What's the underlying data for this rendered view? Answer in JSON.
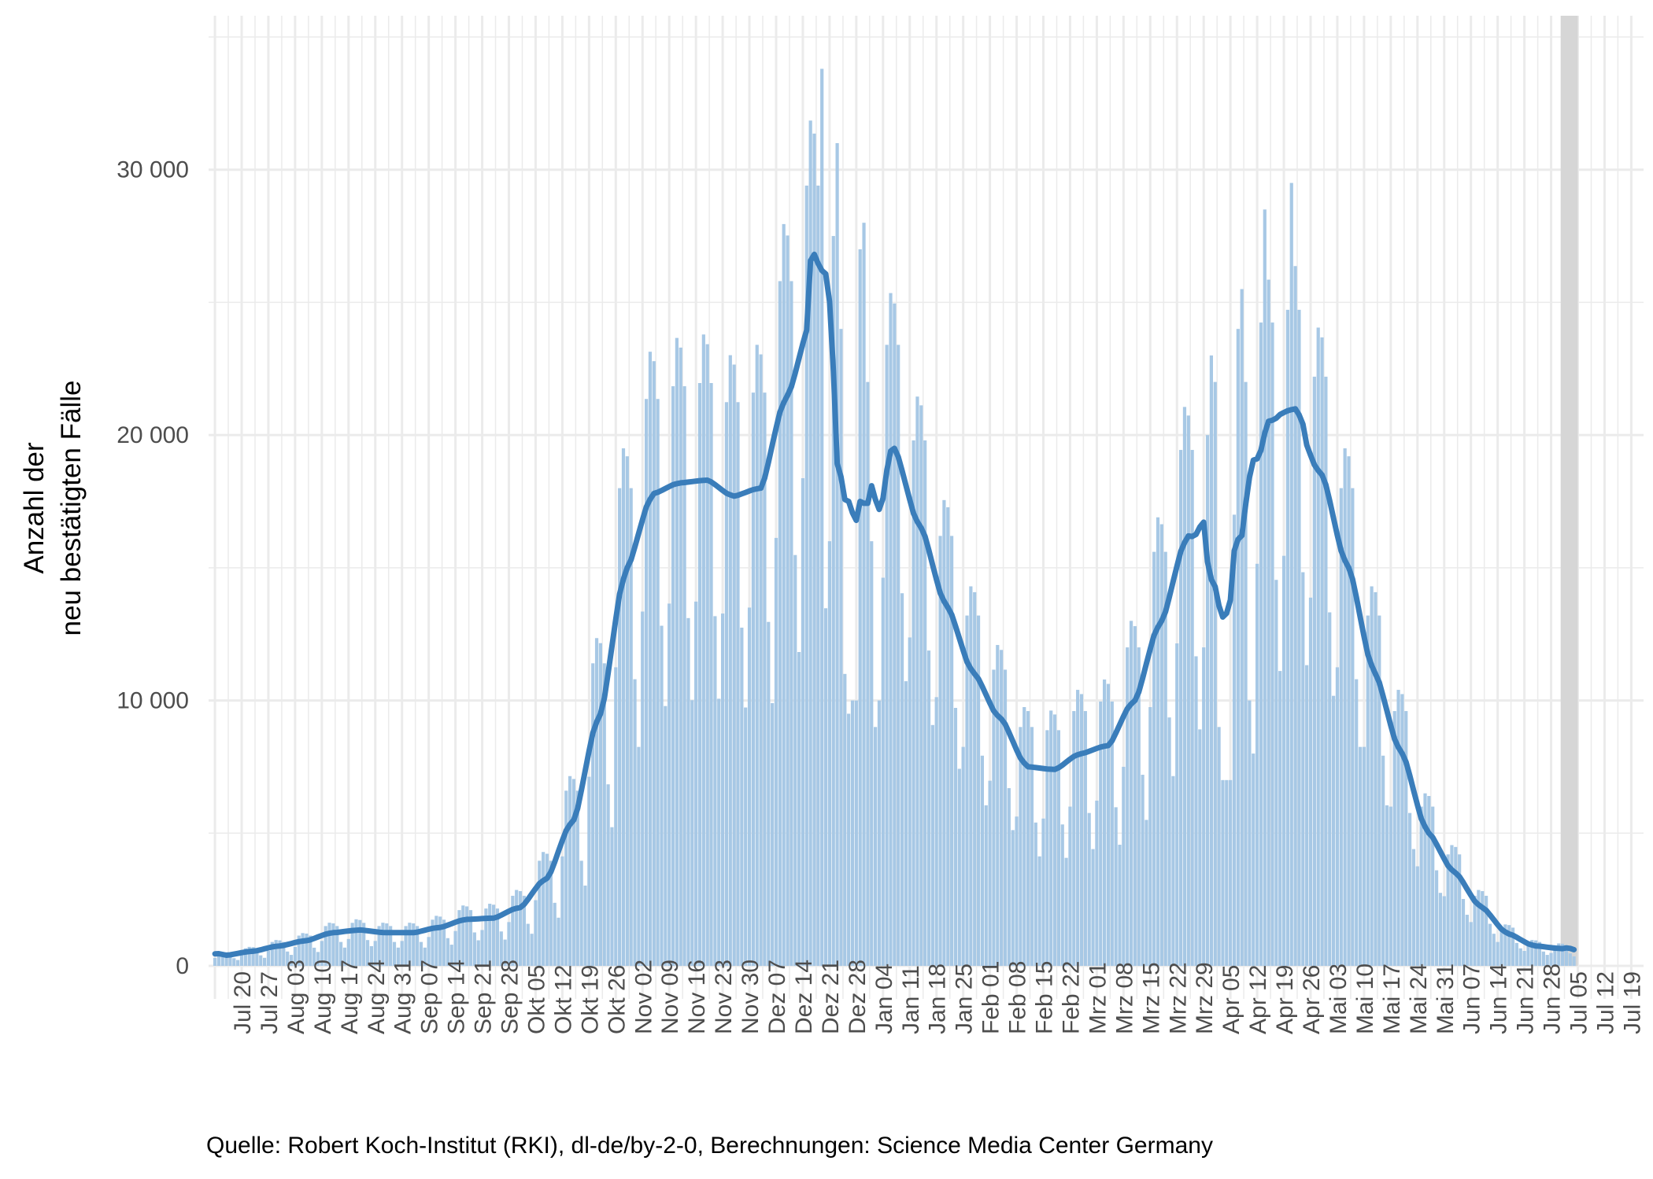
{
  "chart_data": {
    "type": "bar",
    "title": "",
    "xlabel": "",
    "ylabel_lines": [
      "Anzahl der",
      "neu bestätigten Fälle"
    ],
    "caption": "Quelle: Robert Koch-Institut (RKI), dl-de/by-2-0, Berechnungen: Science Media Center Germany",
    "x_start": "2020-07-13",
    "xlim": [
      "2020-07-12",
      "2021-07-22"
    ],
    "ylim": [
      0,
      35000
    ],
    "grid": true,
    "incomplete_range": [
      "2021-07-01",
      "2021-07-04"
    ],
    "colors": {
      "bars": "#a7c8e5",
      "line": "#3a7dba",
      "incomplete": "#d6d6d6",
      "grid": "#ebebeb"
    },
    "y_ticks": [
      {
        "value": 0,
        "label": "0"
      },
      {
        "value": 10000,
        "label": "10 000"
      },
      {
        "value": 20000,
        "label": "20 000"
      },
      {
        "value": 30000,
        "label": "30 000"
      }
    ],
    "x_ticks": [
      {
        "date": "2020-07-20",
        "label": "Jul 20"
      },
      {
        "date": "2020-07-27",
        "label": "Jul 27"
      },
      {
        "date": "2020-08-03",
        "label": "Aug 03"
      },
      {
        "date": "2020-08-10",
        "label": "Aug 10"
      },
      {
        "date": "2020-08-17",
        "label": "Aug 17"
      },
      {
        "date": "2020-08-24",
        "label": "Aug 24"
      },
      {
        "date": "2020-08-31",
        "label": "Aug 31"
      },
      {
        "date": "2020-09-07",
        "label": "Sep 07"
      },
      {
        "date": "2020-09-14",
        "label": "Sep 14"
      },
      {
        "date": "2020-09-21",
        "label": "Sep 21"
      },
      {
        "date": "2020-09-28",
        "label": "Sep 28"
      },
      {
        "date": "2020-10-05",
        "label": "Okt 05"
      },
      {
        "date": "2020-10-12",
        "label": "Okt 12"
      },
      {
        "date": "2020-10-19",
        "label": "Okt 19"
      },
      {
        "date": "2020-10-26",
        "label": "Okt 26"
      },
      {
        "date": "2020-11-02",
        "label": "Nov 02"
      },
      {
        "date": "2020-11-09",
        "label": "Nov 09"
      },
      {
        "date": "2020-11-16",
        "label": "Nov 16"
      },
      {
        "date": "2020-11-23",
        "label": "Nov 23"
      },
      {
        "date": "2020-11-30",
        "label": "Nov 30"
      },
      {
        "date": "2020-12-07",
        "label": "Dez 07"
      },
      {
        "date": "2020-12-14",
        "label": "Dez 14"
      },
      {
        "date": "2020-12-21",
        "label": "Dez 21"
      },
      {
        "date": "2020-12-28",
        "label": "Dez 28"
      },
      {
        "date": "2021-01-04",
        "label": "Jan 04"
      },
      {
        "date": "2021-01-11",
        "label": "Jan 11"
      },
      {
        "date": "2021-01-18",
        "label": "Jan 18"
      },
      {
        "date": "2021-01-25",
        "label": "Jan 25"
      },
      {
        "date": "2021-02-01",
        "label": "Feb 01"
      },
      {
        "date": "2021-02-08",
        "label": "Feb 08"
      },
      {
        "date": "2021-02-15",
        "label": "Feb 15"
      },
      {
        "date": "2021-02-22",
        "label": "Feb 22"
      },
      {
        "date": "2021-03-01",
        "label": "Mrz 01"
      },
      {
        "date": "2021-03-08",
        "label": "Mrz 08"
      },
      {
        "date": "2021-03-15",
        "label": "Mrz 15"
      },
      {
        "date": "2021-03-22",
        "label": "Mrz 22"
      },
      {
        "date": "2021-03-29",
        "label": "Mrz 29"
      },
      {
        "date": "2021-04-05",
        "label": "Apr 05"
      },
      {
        "date": "2021-04-12",
        "label": "Apr 12"
      },
      {
        "date": "2021-04-19",
        "label": "Apr 19"
      },
      {
        "date": "2021-04-26",
        "label": "Apr 26"
      },
      {
        "date": "2021-05-03",
        "label": "Mai 03"
      },
      {
        "date": "2021-05-10",
        "label": "Mai 10"
      },
      {
        "date": "2021-05-17",
        "label": "Mai 17"
      },
      {
        "date": "2021-05-24",
        "label": "Mai 24"
      },
      {
        "date": "2021-05-31",
        "label": "Mai 31"
      },
      {
        "date": "2021-06-07",
        "label": "Jun 07"
      },
      {
        "date": "2021-06-14",
        "label": "Jun 14"
      },
      {
        "date": "2021-06-21",
        "label": "Jun 21"
      },
      {
        "date": "2021-06-28",
        "label": "Jun 28"
      },
      {
        "date": "2021-07-05",
        "label": "Jul 05"
      },
      {
        "date": "2021-07-12",
        "label": "Jul 12"
      },
      {
        "date": "2021-07-19",
        "label": "Jul 19"
      }
    ],
    "series": [
      {
        "type": "bar",
        "values": [
          300,
          480,
          520,
          512,
          480,
          288,
          220,
          413,
          660,
          715,
          704,
          660,
          396,
          303,
          563,
          900,
          975,
          960,
          900,
          540,
          413,
          713,
          1140,
          1235,
          1216,
          1140,
          684,
          523,
          938,
          1500,
          1625,
          1600,
          1500,
          900,
          688,
          1013,
          1620,
          1755,
          1728,
          1620,
          972,
          743,
          938,
          1500,
          1625,
          1600,
          1500,
          900,
          688,
          938,
          1500,
          1625,
          1600,
          1500,
          900,
          688,
          1088,
          1740,
          1885,
          1856,
          1740,
          1044,
          798,
          1313,
          2100,
          2275,
          2240,
          2100,
          1260,
          963,
          1350,
          2160,
          2340,
          2304,
          2160,
          1296,
          990,
          1650,
          2640,
          2860,
          2816,
          2640,
          1584,
          1210,
          2475,
          3960,
          4290,
          4224,
          3960,
          2376,
          1815,
          4125,
          6600,
          7150,
          7040,
          6600,
          3960,
          3025,
          7125,
          11400,
          12350,
          12160,
          11400,
          6840,
          5225,
          11250,
          18000,
          19500,
          19200,
          18000,
          10800,
          8250,
          13350,
          21360,
          23140,
          22784,
          21360,
          12816,
          9790,
          13650,
          21840,
          23660,
          23296,
          21840,
          13104,
          10010,
          13725,
          21960,
          23790,
          23424,
          21960,
          13176,
          10065,
          13275,
          21240,
          23010,
          22656,
          21240,
          12744,
          9735,
          13500,
          21600,
          23400,
          23040,
          21600,
          12960,
          9900,
          16125,
          25800,
          27950,
          27520,
          25800,
          15480,
          11825,
          18375,
          29400,
          31850,
          31360,
          29400,
          33800,
          13475,
          16000,
          27500,
          31000,
          24000,
          11000,
          9500,
          10000,
          10000,
          27000,
          28000,
          22000,
          16000,
          9000,
          10000,
          14625,
          23400,
          25350,
          24960,
          23400,
          14040,
          10725,
          12375,
          19800,
          21450,
          21120,
          19800,
          11880,
          9075,
          10125,
          16200,
          17550,
          17280,
          16200,
          9720,
          7425,
          8250,
          13200,
          14300,
          14080,
          13200,
          7920,
          6050,
          6975,
          11160,
          12090,
          11904,
          11160,
          6696,
          5115,
          5625,
          9000,
          9750,
          9600,
          9000,
          5400,
          4125,
          5550,
          8880,
          9620,
          9472,
          8880,
          5328,
          4070,
          6000,
          9600,
          10400,
          10240,
          9600,
          5760,
          4400,
          6225,
          9960,
          10790,
          10624,
          9960,
          5976,
          4565,
          7500,
          12000,
          13000,
          12800,
          12000,
          7200,
          5500,
          9750,
          15600,
          16900,
          16640,
          15600,
          9360,
          7150,
          12150,
          19440,
          21060,
          20736,
          19440,
          11664,
          8910,
          12000,
          20000,
          23000,
          22000,
          9000,
          7000,
          7000,
          7000,
          17000,
          24000,
          25500,
          22000,
          10000,
          8000,
          15150,
          24240,
          28500,
          25856,
          24240,
          14544,
          11110,
          15450,
          24720,
          29500,
          26368,
          24720,
          14832,
          11330,
          13875,
          22200,
          24050,
          23680,
          22200,
          13320,
          10175,
          11250,
          18000,
          19500,
          19200,
          18000,
          10800,
          8250,
          8250,
          13200,
          14300,
          14080,
          13200,
          7920,
          6050,
          6000,
          9600,
          10400,
          10240,
          9600,
          5760,
          4400,
          3750,
          6000,
          6500,
          6400,
          6000,
          3600,
          2750,
          2625,
          4200,
          4550,
          4480,
          4200,
          2520,
          1925,
          1650,
          2640,
          2860,
          2816,
          2640,
          1584,
          1210,
          900,
          1440,
          1560,
          1536,
          1440,
          864,
          660,
          563,
          900,
          975,
          960,
          900,
          540,
          413,
          488,
          780,
          845,
          832,
          780,
          468,
          358
        ]
      },
      {
        "type": "line",
        "derived": "7-day mean"
      }
    ]
  }
}
